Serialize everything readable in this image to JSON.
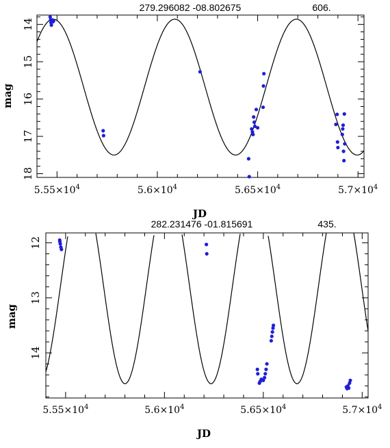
{
  "chart_data": [
    {
      "type": "scatter",
      "title_coords": "279.296082  -08.802675",
      "title_period": "606.",
      "xlabel": "JD",
      "ylabel": "mag",
      "xlim": [
        55400,
        57030
      ],
      "ylim": [
        18.1,
        13.75
      ],
      "y_inverted": true,
      "xticks": [
        {
          "value": 55500,
          "label": "5.55×10",
          "exp": "4"
        },
        {
          "value": 56000,
          "label": "5.6×10",
          "exp": "4"
        },
        {
          "value": 56500,
          "label": "5.65×10",
          "exp": "4"
        },
        {
          "value": 57000,
          "label": "5.7×10",
          "exp": "4"
        }
      ],
      "yticks": [
        {
          "value": 14,
          "label": "14"
        },
        {
          "value": 15,
          "label": "15"
        },
        {
          "value": 16,
          "label": "16"
        },
        {
          "value": 17,
          "label": "17"
        },
        {
          "value": 18,
          "label": "18"
        }
      ],
      "model": {
        "type": "sinusoid",
        "mean": 15.68,
        "amplitude": 1.82,
        "period": 606,
        "peak_jd": 55481
      },
      "points": [
        {
          "x": 55466,
          "y": 13.8
        },
        {
          "x": 55468,
          "y": 13.88
        },
        {
          "x": 55470,
          "y": 13.95
        },
        {
          "x": 55472,
          "y": 14.02
        },
        {
          "x": 55474,
          "y": 13.91
        },
        {
          "x": 55477,
          "y": 13.88
        },
        {
          "x": 55480,
          "y": 13.93
        },
        {
          "x": 55483,
          "y": 13.9
        },
        {
          "x": 55730,
          "y": 16.85
        },
        {
          "x": 55732,
          "y": 16.98
        },
        {
          "x": 56213,
          "y": 15.27
        },
        {
          "x": 56455,
          "y": 17.6
        },
        {
          "x": 56458,
          "y": 18.08
        },
        {
          "x": 56470,
          "y": 16.8
        },
        {
          "x": 56474,
          "y": 16.88
        },
        {
          "x": 56477,
          "y": 16.95
        },
        {
          "x": 56480,
          "y": 16.48
        },
        {
          "x": 56483,
          "y": 16.62
        },
        {
          "x": 56486,
          "y": 16.73
        },
        {
          "x": 56493,
          "y": 16.28
        },
        {
          "x": 56500,
          "y": 16.77
        },
        {
          "x": 56527,
          "y": 16.22
        },
        {
          "x": 56529,
          "y": 15.65
        },
        {
          "x": 56531,
          "y": 15.32
        },
        {
          "x": 56890,
          "y": 16.68
        },
        {
          "x": 56896,
          "y": 16.41
        },
        {
          "x": 56898,
          "y": 17.15
        },
        {
          "x": 56900,
          "y": 17.3
        },
        {
          "x": 56922,
          "y": 16.95
        },
        {
          "x": 56924,
          "y": 16.8
        },
        {
          "x": 56926,
          "y": 16.7
        },
        {
          "x": 56928,
          "y": 17.4
        },
        {
          "x": 56930,
          "y": 17.65
        },
        {
          "x": 56932,
          "y": 16.4
        },
        {
          "x": 56934,
          "y": 17.2
        }
      ]
    },
    {
      "type": "scatter",
      "title_coords": "282.231476  -01.815691",
      "title_period": "435.",
      "xlabel": "JD",
      "ylabel": "mag",
      "xlim": [
        55400,
        57030
      ],
      "ylim": [
        14.82,
        11.82
      ],
      "y_inverted": true,
      "xticks": [
        {
          "value": 55500,
          "label": "5.55×10",
          "exp": "4"
        },
        {
          "value": 56000,
          "label": "5.6×10",
          "exp": "4"
        },
        {
          "value": 56500,
          "label": "5.65×10",
          "exp": "4"
        },
        {
          "value": 57000,
          "label": "5.7×10",
          "exp": "4"
        }
      ],
      "yticks": [
        {
          "value": 12,
          "label": "12"
        },
        {
          "value": 13,
          "label": "13"
        },
        {
          "value": 14,
          "label": "14"
        }
      ],
      "model": {
        "type": "sinusoid",
        "mean": 12.78,
        "amplitude": 1.78,
        "period": 435,
        "peak_jd": 55583
      },
      "points": [
        {
          "x": 55470,
          "y": 11.95
        },
        {
          "x": 55473,
          "y": 12.02
        },
        {
          "x": 55476,
          "y": 12.08
        },
        {
          "x": 55479,
          "y": 12.12
        },
        {
          "x": 55471,
          "y": 11.98
        },
        {
          "x": 56212,
          "y": 12.03
        },
        {
          "x": 56214,
          "y": 12.2
        },
        {
          "x": 56470,
          "y": 14.3
        },
        {
          "x": 56472,
          "y": 14.38
        },
        {
          "x": 56480,
          "y": 14.55
        },
        {
          "x": 56484,
          "y": 14.52
        },
        {
          "x": 56490,
          "y": 14.48
        },
        {
          "x": 56500,
          "y": 14.5
        },
        {
          "x": 56506,
          "y": 14.45
        },
        {
          "x": 56510,
          "y": 14.38
        },
        {
          "x": 56514,
          "y": 14.3
        },
        {
          "x": 56518,
          "y": 14.2
        },
        {
          "x": 56540,
          "y": 13.78
        },
        {
          "x": 56543,
          "y": 13.7
        },
        {
          "x": 56546,
          "y": 13.62
        },
        {
          "x": 56549,
          "y": 13.55
        },
        {
          "x": 56551,
          "y": 13.5
        },
        {
          "x": 56920,
          "y": 14.62
        },
        {
          "x": 56924,
          "y": 14.65
        },
        {
          "x": 56928,
          "y": 14.6
        },
        {
          "x": 56932,
          "y": 14.64
        },
        {
          "x": 56936,
          "y": 14.55
        },
        {
          "x": 56940,
          "y": 14.5
        }
      ]
    }
  ]
}
